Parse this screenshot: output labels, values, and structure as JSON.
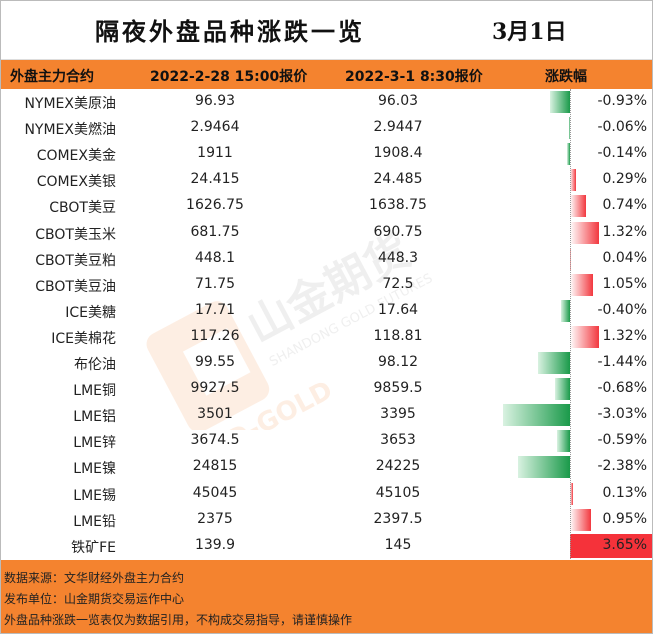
{
  "title": "隔夜外盘品种涨跌一览",
  "date": "3月1日",
  "header": {
    "name": "外盘主力合约",
    "prev": "2022-2-28 15:00报价",
    "curr": "2022-3-1 8:30报价",
    "change": "涨跌幅"
  },
  "rows": [
    {
      "name": "NYMEX美原油",
      "prev": "96.93",
      "curr": "96.03",
      "change_text": "-0.93%",
      "change": -0.93
    },
    {
      "name": "NYMEX美燃油",
      "prev": "2.9464",
      "curr": "2.9447",
      "change_text": "-0.06%",
      "change": -0.06
    },
    {
      "name": "COMEX美金",
      "prev": "1911",
      "curr": "1908.4",
      "change_text": "-0.14%",
      "change": -0.14
    },
    {
      "name": "COMEX美银",
      "prev": "24.415",
      "curr": "24.485",
      "change_text": "0.29%",
      "change": 0.29
    },
    {
      "name": "CBOT美豆",
      "prev": "1626.75",
      "curr": "1638.75",
      "change_text": "0.74%",
      "change": 0.74
    },
    {
      "name": "CBOT美玉米",
      "prev": "681.75",
      "curr": "690.75",
      "change_text": "1.32%",
      "change": 1.32
    },
    {
      "name": "CBOT美豆粕",
      "prev": "448.1",
      "curr": "448.3",
      "change_text": "0.04%",
      "change": 0.04
    },
    {
      "name": "CBOT美豆油",
      "prev": "71.75",
      "curr": "72.5",
      "change_text": "1.05%",
      "change": 1.05
    },
    {
      "name": "ICE美糖",
      "prev": "17.71",
      "curr": "17.64",
      "change_text": "-0.40%",
      "change": -0.4
    },
    {
      "name": "ICE美棉花",
      "prev": "117.26",
      "curr": "118.81",
      "change_text": "1.32%",
      "change": 1.32
    },
    {
      "name": "布伦油",
      "prev": "99.55",
      "curr": "98.12",
      "change_text": "-1.44%",
      "change": -1.44
    },
    {
      "name": "LME铜",
      "prev": "9927.5",
      "curr": "9859.5",
      "change_text": "-0.68%",
      "change": -0.68
    },
    {
      "name": "LME铝",
      "prev": "3501",
      "curr": "3395",
      "change_text": "-3.03%",
      "change": -3.03
    },
    {
      "name": "LME锌",
      "prev": "3674.5",
      "curr": "3653",
      "change_text": "-0.59%",
      "change": -0.59
    },
    {
      "name": "LME镍",
      "prev": "24815",
      "curr": "24225",
      "change_text": "-2.38%",
      "change": -2.38
    },
    {
      "name": "LME锡",
      "prev": "45045",
      "curr": "45105",
      "change_text": "0.13%",
      "change": 0.13
    },
    {
      "name": "LME铅",
      "prev": "2375",
      "curr": "2397.5",
      "change_text": "0.95%",
      "change": 0.95
    },
    {
      "name": "铁矿FE",
      "prev": "139.9",
      "curr": "145",
      "change_text": "3.65%",
      "change": 3.65
    }
  ],
  "watermark": {
    "brand_cn": "山金期货",
    "brand_en": "SHANDONG GOLD FUTURES",
    "logo_text": "SD-GOLD"
  },
  "footer": {
    "source": "数据来源：文华财经外盘主力合约",
    "publisher": "发布单位：山金期货交易运作中心",
    "disclaimer": "外盘品种涨跌一览表仅为数据引用，不构成交易指导，请谨慎操作"
  },
  "colors": {
    "accent_orange": "#f4832f",
    "up_red": "#f2383f",
    "down_green": "#1a9a4a"
  }
}
